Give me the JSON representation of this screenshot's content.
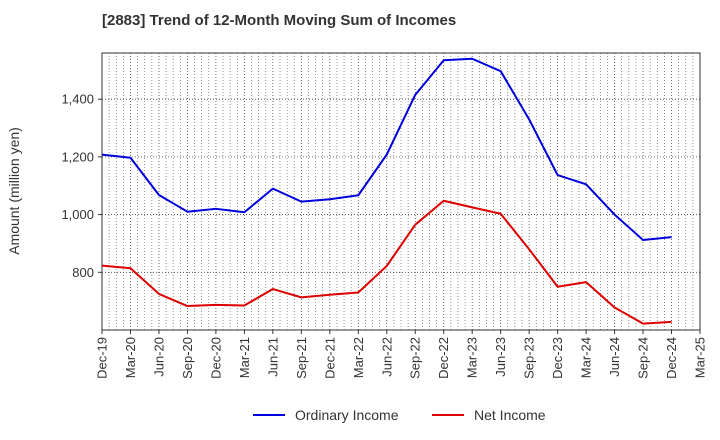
{
  "chart_data": {
    "type": "line",
    "title": "[2883]  Trend of 12-Month Moving Sum of Incomes",
    "xlabel": "",
    "ylabel": "Amount (million yen)",
    "ylim": [
      600,
      1560
    ],
    "yticks": [
      800,
      1000,
      1200,
      1400
    ],
    "ytick_labels": [
      "800",
      "1,000",
      "1,200",
      "1,400"
    ],
    "grid": true,
    "legend_position": "bottom-center",
    "categories": [
      "Dec-19",
      "Mar-20",
      "Jun-20",
      "Sep-20",
      "Dec-20",
      "Mar-21",
      "Jun-21",
      "Sep-21",
      "Dec-21",
      "Mar-22",
      "Jun-22",
      "Sep-22",
      "Dec-22",
      "Mar-23",
      "Jun-23",
      "Sep-23",
      "Dec-23",
      "Mar-24",
      "Jun-24",
      "Sep-24",
      "Dec-24",
      "Mar-25"
    ],
    "series": [
      {
        "name": "Ordinary Income",
        "color": "#0000dd",
        "values": [
          1208,
          1197,
          1068,
          1010,
          1020,
          1008,
          1090,
          1045,
          1053,
          1067,
          1208,
          1415,
          1535,
          1540,
          1497,
          1330,
          1137,
          1105,
          1000,
          912,
          922,
          null
        ]
      },
      {
        "name": "Net Income",
        "color": "#dd0000",
        "values": [
          823,
          814,
          725,
          683,
          687,
          685,
          742,
          713,
          722,
          730,
          822,
          965,
          1048,
          1025,
          1003,
          880,
          750,
          766,
          678,
          622,
          628,
          null
        ]
      }
    ]
  }
}
